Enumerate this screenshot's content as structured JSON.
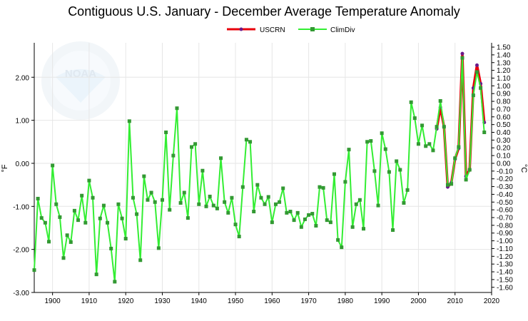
{
  "chart_data": {
    "type": "line",
    "title": "Contiguous U.S. January - December Average Temperature Anomaly",
    "ylabel_left": "°F",
    "ylabel_right": "°C",
    "xlim": [
      1895,
      2020
    ],
    "ylim": [
      -3.0,
      2.8
    ],
    "x_ticks": [
      1900,
      1910,
      1920,
      1930,
      1940,
      1950,
      1960,
      1970,
      1980,
      1990,
      2000,
      2010,
      2020
    ],
    "y_ticks_left": [
      "-3.00",
      "-2.00",
      "-1.00",
      "0.00",
      "1.00",
      "2.00"
    ],
    "y_ticks_left_values": [
      -3,
      -2,
      -1,
      0,
      1,
      2
    ],
    "y_ticks_right": [
      "-1.60",
      "-1.50",
      "-1.40",
      "-1.30",
      "-1.20",
      "-1.10",
      "-1.00",
      "-0.90",
      "-0.80",
      "-0.70",
      "-0.60",
      "-0.50",
      "-0.40",
      "-0.30",
      "-0.20",
      "-0.10",
      "0.00",
      "0.10",
      "0.20",
      "0.30",
      "0.40",
      "0.50",
      "0.60",
      "0.70",
      "0.80",
      "0.90",
      "1.00",
      "1.10",
      "1.20",
      "1.30",
      "1.40",
      "1.50"
    ],
    "grid": true,
    "legend_position": "top-center",
    "watermark": "NOAA",
    "series": [
      {
        "name": "USCRN",
        "color": "#e8000b",
        "marker_color": "#6a1a8a",
        "x": [
          2005,
          2006,
          2007,
          2008,
          2009,
          2010,
          2011,
          2012,
          2013,
          2014,
          2015,
          2016,
          2017,
          2018
        ],
        "values": [
          0.8,
          1.3,
          0.85,
          -0.55,
          -0.45,
          0.1,
          0.35,
          2.55,
          -0.3,
          -0.15,
          1.75,
          2.28,
          1.85,
          0.95
        ]
      },
      {
        "name": "ClimDiv",
        "color": "#33ee33",
        "marker_color": "#339933",
        "x": [
          1895,
          1896,
          1897,
          1898,
          1899,
          1900,
          1901,
          1902,
          1903,
          1904,
          1905,
          1906,
          1907,
          1908,
          1909,
          1910,
          1911,
          1912,
          1913,
          1914,
          1915,
          1916,
          1917,
          1918,
          1919,
          1920,
          1921,
          1922,
          1923,
          1924,
          1925,
          1926,
          1927,
          1928,
          1929,
          1930,
          1931,
          1932,
          1933,
          1934,
          1935,
          1936,
          1937,
          1938,
          1939,
          1940,
          1941,
          1942,
          1943,
          1944,
          1945,
          1946,
          1947,
          1948,
          1949,
          1950,
          1951,
          1952,
          1953,
          1954,
          1955,
          1956,
          1957,
          1958,
          1959,
          1960,
          1961,
          1962,
          1963,
          1964,
          1965,
          1966,
          1967,
          1968,
          1969,
          1970,
          1971,
          1972,
          1973,
          1974,
          1975,
          1976,
          1977,
          1978,
          1979,
          1980,
          1981,
          1982,
          1983,
          1984,
          1985,
          1986,
          1987,
          1988,
          1989,
          1990,
          1991,
          1992,
          1993,
          1994,
          1995,
          1996,
          1997,
          1998,
          1999,
          2000,
          2001,
          2002,
          2003,
          2004,
          2005,
          2006,
          2007,
          2008,
          2009,
          2010,
          2011,
          2012,
          2013,
          2014,
          2015,
          2016,
          2017,
          2018
        ],
        "values": [
          -2.48,
          -0.82,
          -1.27,
          -1.38,
          -1.82,
          -0.05,
          -0.95,
          -1.25,
          -2.2,
          -1.67,
          -1.83,
          -1.1,
          -1.32,
          -0.75,
          -1.38,
          -0.4,
          -0.8,
          -2.58,
          -1.28,
          -0.98,
          -1.38,
          -1.98,
          -2.75,
          -0.95,
          -1.28,
          -1.75,
          0.98,
          -0.8,
          -1.18,
          -2.25,
          -0.3,
          -0.85,
          -0.68,
          -0.9,
          -1.97,
          -0.85,
          0.72,
          -1.08,
          0.18,
          1.28,
          -0.92,
          -0.68,
          -1.27,
          0.38,
          0.45,
          -0.95,
          -0.17,
          -1.0,
          -0.77,
          -0.98,
          -1.05,
          0.12,
          -0.9,
          -1.15,
          -0.8,
          -1.42,
          -1.7,
          -0.55,
          0.55,
          0.5,
          -1.12,
          -0.5,
          -0.8,
          -0.95,
          -0.78,
          -1.37,
          -0.95,
          -0.9,
          -0.58,
          -1.15,
          -1.12,
          -1.32,
          -1.15,
          -1.48,
          -1.3,
          -1.2,
          -1.17,
          -1.45,
          -0.55,
          -0.57,
          -1.32,
          -1.37,
          -0.25,
          -1.78,
          -1.95,
          -0.43,
          0.32,
          -1.48,
          -0.95,
          -0.85,
          -1.52,
          0.5,
          0.52,
          -0.18,
          -0.98,
          0.7,
          0.33,
          -0.2,
          -1.55,
          0.05,
          -0.15,
          -0.92,
          -0.62,
          1.42,
          1.05,
          0.45,
          0.88,
          0.4,
          0.45,
          0.3,
          0.85,
          1.45,
          0.85,
          -0.5,
          -0.48,
          0.12,
          0.38,
          2.45,
          -0.38,
          -0.15,
          1.58,
          2.12,
          1.75,
          0.72
        ]
      }
    ]
  }
}
